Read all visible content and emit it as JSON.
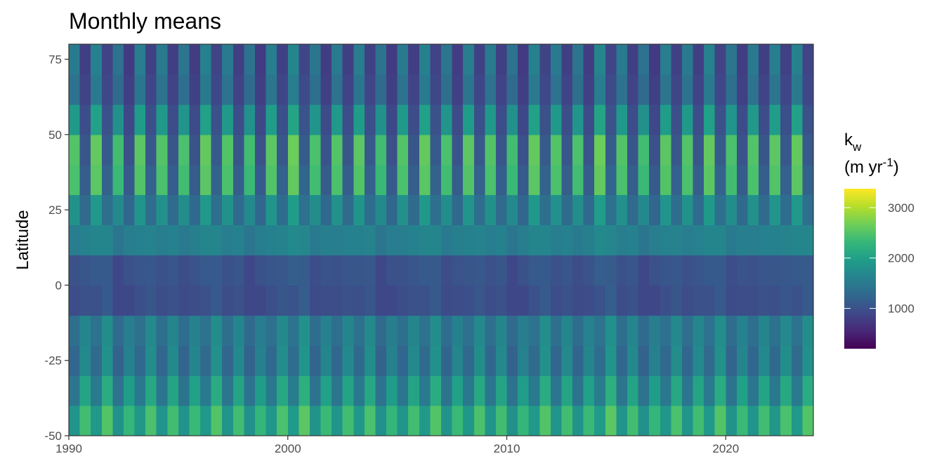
{
  "chart_data": {
    "type": "heatmap",
    "title": "Monthly means",
    "y_label": "Latitude",
    "legend_title": {
      "base": "k",
      "sub": "w"
    },
    "legend_units": {
      "prefix": "(m yr",
      "sup": "-1",
      "suffix": ")"
    },
    "colormap": [
      "#440154",
      "#482878",
      "#3e4989",
      "#31688e",
      "#26828e",
      "#1f9e89",
      "#35b779",
      "#6ece58",
      "#b5de2b",
      "#fde725"
    ],
    "zlim": [
      200,
      3375
    ],
    "zticks": [
      1000,
      2000,
      3000
    ],
    "xlim": [
      1990,
      2024
    ],
    "xticks": [
      1990,
      2000,
      2010,
      2020
    ],
    "ylim": [
      -50,
      80
    ],
    "yticks": [
      -50,
      -25,
      0,
      25,
      50,
      75
    ],
    "x": [
      1990,
      1990.5,
      1991,
      1991.5,
      1992,
      1992.5,
      1993,
      1993.5,
      1994,
      1994.5,
      1995,
      1995.5,
      1996,
      1996.5,
      1997,
      1997.5,
      1998,
      1998.5,
      1999,
      1999.5,
      2000,
      2000.5,
      2001,
      2001.5,
      2002,
      2002.5,
      2003,
      2003.5,
      2004,
      2004.5,
      2005,
      2005.5,
      2006,
      2006.5,
      2007,
      2007.5,
      2008,
      2008.5,
      2009,
      2009.5,
      2010,
      2010.5,
      2011,
      2011.5,
      2012,
      2012.5,
      2013,
      2013.5,
      2014,
      2014.5,
      2015,
      2015.5,
      2016,
      2016.5,
      2017,
      2017.5,
      2018,
      2018.5,
      2019,
      2019.5,
      2020,
      2020.5,
      2021,
      2021.5,
      2022,
      2022.5,
      2023,
      2023.5
    ],
    "y": [
      -45,
      -35,
      -25,
      -15,
      -5,
      5,
      15,
      25,
      35,
      45,
      55,
      65,
      75
    ],
    "z": [
      [
        1850,
        2400,
        1900,
        2500,
        1800,
        2300,
        1875,
        2450,
        1850,
        2400,
        1825,
        2350,
        1900,
        2500,
        1850,
        2400,
        1800,
        2300,
        1875,
        2450,
        1925,
        2550,
        1825,
        2350,
        1850,
        2400,
        1875,
        2450,
        1800,
        2300,
        1850,
        2400,
        1900,
        2500,
        1825,
        2350,
        1875,
        2450,
        1850,
        2400,
        1800,
        2300,
        1900,
        2500,
        1850,
        2400,
        1825,
        2350,
        1925,
        2550,
        1850,
        2400,
        1800,
        2300,
        1875,
        2450,
        1850,
        2400,
        1900,
        2500,
        1825,
        2350,
        1850,
        2400,
        1875,
        2450,
        1900,
        2500
      ],
      [
        1450,
        2050,
        1500,
        2150,
        1400,
        1950,
        1475,
        2100,
        1450,
        2050,
        1425,
        2000,
        1500,
        2150,
        1450,
        2050,
        1400,
        1950,
        1475,
        2100,
        1525,
        2200,
        1425,
        2000,
        1450,
        2050,
        1475,
        2100,
        1400,
        1950,
        1450,
        2050,
        1500,
        2150,
        1425,
        2000,
        1475,
        2100,
        1450,
        2050,
        1400,
        1950,
        1500,
        2150,
        1450,
        2050,
        1425,
        2000,
        1525,
        2200,
        1450,
        2050,
        1400,
        1950,
        1475,
        2100,
        1450,
        2050,
        1500,
        2150,
        1425,
        2000,
        1450,
        2050,
        1475,
        2100,
        1500,
        2150
      ],
      [
        1250,
        1700,
        1300,
        1800,
        1200,
        1600,
        1275,
        1750,
        1250,
        1700,
        1225,
        1650,
        1300,
        1800,
        1250,
        1700,
        1200,
        1600,
        1275,
        1750,
        1325,
        1850,
        1225,
        1650,
        1250,
        1700,
        1275,
        1750,
        1200,
        1600,
        1250,
        1700,
        1300,
        1800,
        1225,
        1650,
        1275,
        1750,
        1250,
        1700,
        1200,
        1600,
        1300,
        1800,
        1250,
        1700,
        1225,
        1650,
        1325,
        1850,
        1250,
        1700,
        1200,
        1600,
        1275,
        1750,
        1250,
        1700,
        1300,
        1800,
        1225,
        1650,
        1250,
        1700,
        1275,
        1750,
        1300,
        1800
      ],
      [
        1350,
        1650,
        1400,
        1750,
        1300,
        1550,
        1375,
        1700,
        1350,
        1650,
        1325,
        1600,
        1400,
        1750,
        1350,
        1650,
        1300,
        1550,
        1375,
        1700,
        1425,
        1800,
        1325,
        1600,
        1350,
        1650,
        1375,
        1700,
        1300,
        1550,
        1350,
        1650,
        1400,
        1750,
        1325,
        1600,
        1375,
        1700,
        1350,
        1650,
        1300,
        1550,
        1400,
        1750,
        1350,
        1650,
        1325,
        1600,
        1425,
        1800,
        1350,
        1650,
        1300,
        1550,
        1375,
        1700,
        1350,
        1650,
        1400,
        1750,
        1325,
        1600,
        1350,
        1650,
        1375,
        1700,
        1400,
        1750
      ],
      [
        950,
        1000,
        1000,
        1100,
        900,
        900,
        975,
        1050,
        950,
        1000,
        925,
        950,
        1000,
        1100,
        950,
        1000,
        900,
        900,
        975,
        1050,
        1025,
        1150,
        925,
        950,
        950,
        1000,
        975,
        1050,
        900,
        900,
        950,
        1000,
        1000,
        1100,
        925,
        950,
        975,
        1050,
        950,
        1000,
        900,
        900,
        1000,
        1100,
        950,
        1000,
        925,
        950,
        1025,
        1150,
        950,
        1000,
        900,
        900,
        975,
        1050,
        950,
        1000,
        1000,
        1100,
        925,
        950,
        950,
        1000,
        975,
        1050,
        1000,
        1100
      ],
      [
        1000,
        1050,
        1100,
        1100,
        900,
        1000,
        1050,
        1075,
        1000,
        1050,
        950,
        1025,
        1100,
        1100,
        1000,
        1050,
        900,
        1000,
        1050,
        1075,
        1150,
        1125,
        950,
        1025,
        1000,
        1050,
        1050,
        1075,
        900,
        1000,
        1000,
        1050,
        1100,
        1100,
        950,
        1025,
        1050,
        1075,
        1000,
        1050,
        900,
        1000,
        1100,
        1100,
        1000,
        1050,
        950,
        1025,
        1150,
        1125,
        1000,
        1050,
        900,
        1000,
        1050,
        1075,
        1000,
        1050,
        1100,
        1100,
        950,
        1025,
        1000,
        1050,
        1050,
        1075,
        1100,
        1100
      ],
      [
        1550,
        1600,
        1650,
        1650,
        1450,
        1550,
        1600,
        1625,
        1550,
        1600,
        1500,
        1575,
        1650,
        1650,
        1550,
        1600,
        1450,
        1550,
        1600,
        1625,
        1700,
        1675,
        1500,
        1575,
        1550,
        1600,
        1600,
        1625,
        1450,
        1550,
        1550,
        1600,
        1650,
        1650,
        1500,
        1575,
        1600,
        1625,
        1550,
        1600,
        1450,
        1550,
        1650,
        1650,
        1550,
        1600,
        1500,
        1575,
        1700,
        1675,
        1550,
        1600,
        1450,
        1550,
        1600,
        1625,
        1550,
        1600,
        1650,
        1650,
        1500,
        1575,
        1550,
        1600,
        1600,
        1625,
        1650,
        1650
      ],
      [
        1800,
        1300,
        1900,
        1350,
        1700,
        1250,
        1850,
        1325,
        1800,
        1300,
        1750,
        1275,
        1900,
        1350,
        1800,
        1300,
        1700,
        1250,
        1850,
        1325,
        1950,
        1375,
        1750,
        1275,
        1800,
        1300,
        1850,
        1325,
        1700,
        1250,
        1800,
        1300,
        1900,
        1350,
        1750,
        1275,
        1850,
        1325,
        1800,
        1300,
        1700,
        1250,
        1900,
        1350,
        1800,
        1300,
        1750,
        1275,
        1950,
        1375,
        1800,
        1300,
        1700,
        1250,
        1850,
        1325,
        1800,
        1300,
        1900,
        1350,
        1750,
        1275,
        1800,
        1300,
        1850,
        1325,
        1900,
        1350
      ],
      [
        2450,
        1150,
        2550,
        1200,
        2350,
        1100,
        2500,
        1175,
        2450,
        1150,
        2400,
        1125,
        2550,
        1200,
        2450,
        1150,
        2350,
        1100,
        2500,
        1175,
        2600,
        1225,
        2400,
        1125,
        2450,
        1150,
        2500,
        1175,
        2350,
        1100,
        2450,
        1150,
        2550,
        1200,
        2400,
        1125,
        2500,
        1175,
        2450,
        1150,
        2350,
        1100,
        2550,
        1200,
        2450,
        1150,
        2400,
        1125,
        2600,
        1225,
        2450,
        1150,
        2350,
        1100,
        2500,
        1175,
        2450,
        1150,
        2550,
        1200,
        2400,
        1125,
        2450,
        1150,
        2500,
        1175,
        2550,
        1200
      ],
      [
        2500,
        1050,
        2600,
        1100,
        2400,
        1000,
        2550,
        1075,
        2500,
        1050,
        2450,
        1025,
        2600,
        1100,
        2500,
        1050,
        2400,
        1000,
        2550,
        1075,
        2650,
        1125,
        2450,
        1025,
        2500,
        1050,
        2550,
        1075,
        2400,
        1000,
        2500,
        1050,
        2600,
        1100,
        2450,
        1025,
        2550,
        1075,
        2500,
        1050,
        2400,
        1000,
        2600,
        1100,
        2500,
        1050,
        2450,
        1025,
        2650,
        1125,
        2500,
        1050,
        2400,
        1000,
        2550,
        1075,
        2500,
        1050,
        2600,
        1100,
        2450,
        1025,
        2500,
        1050,
        2550,
        1075,
        2600,
        1100
      ],
      [
        1900,
        950,
        2000,
        1000,
        1800,
        900,
        1950,
        975,
        1900,
        950,
        1850,
        925,
        2000,
        1000,
        1900,
        950,
        1800,
        900,
        1950,
        975,
        2050,
        1025,
        1850,
        925,
        1900,
        950,
        1950,
        975,
        1800,
        900,
        1900,
        950,
        2000,
        1000,
        1850,
        925,
        1950,
        975,
        1900,
        950,
        1800,
        900,
        2000,
        1000,
        1900,
        950,
        1850,
        925,
        2050,
        1025,
        1900,
        950,
        1800,
        900,
        1950,
        975,
        1900,
        950,
        2000,
        1000,
        1850,
        925,
        1900,
        950,
        1950,
        975,
        2000,
        1000
      ],
      [
        1400,
        850,
        1500,
        900,
        1300,
        800,
        1450,
        875,
        1400,
        850,
        1350,
        825,
        1500,
        900,
        1400,
        850,
        1300,
        800,
        1450,
        875,
        1550,
        925,
        1350,
        825,
        1400,
        850,
        1450,
        875,
        1300,
        800,
        1400,
        850,
        1500,
        900,
        1350,
        825,
        1450,
        875,
        1400,
        850,
        1300,
        800,
        1500,
        900,
        1400,
        850,
        1350,
        825,
        1550,
        925,
        1400,
        850,
        1300,
        800,
        1450,
        875,
        1400,
        850,
        1500,
        900,
        1350,
        825,
        1400,
        850,
        1450,
        875,
        1500,
        900
      ],
      [
        1500,
        800,
        1600,
        850,
        1400,
        750,
        1550,
        825,
        1500,
        800,
        1450,
        775,
        1600,
        850,
        1500,
        800,
        1400,
        750,
        1550,
        825,
        1650,
        875,
        1450,
        775,
        1500,
        800,
        1550,
        825,
        1400,
        750,
        1500,
        800,
        1600,
        850,
        1450,
        775,
        1550,
        825,
        1500,
        800,
        1400,
        750,
        1600,
        850,
        1500,
        800,
        1450,
        775,
        1650,
        875,
        1500,
        800,
        1400,
        750,
        1550,
        825,
        1500,
        800,
        1600,
        850,
        1450,
        775,
        1500,
        800,
        1550,
        825,
        1600,
        850
      ]
    ]
  }
}
